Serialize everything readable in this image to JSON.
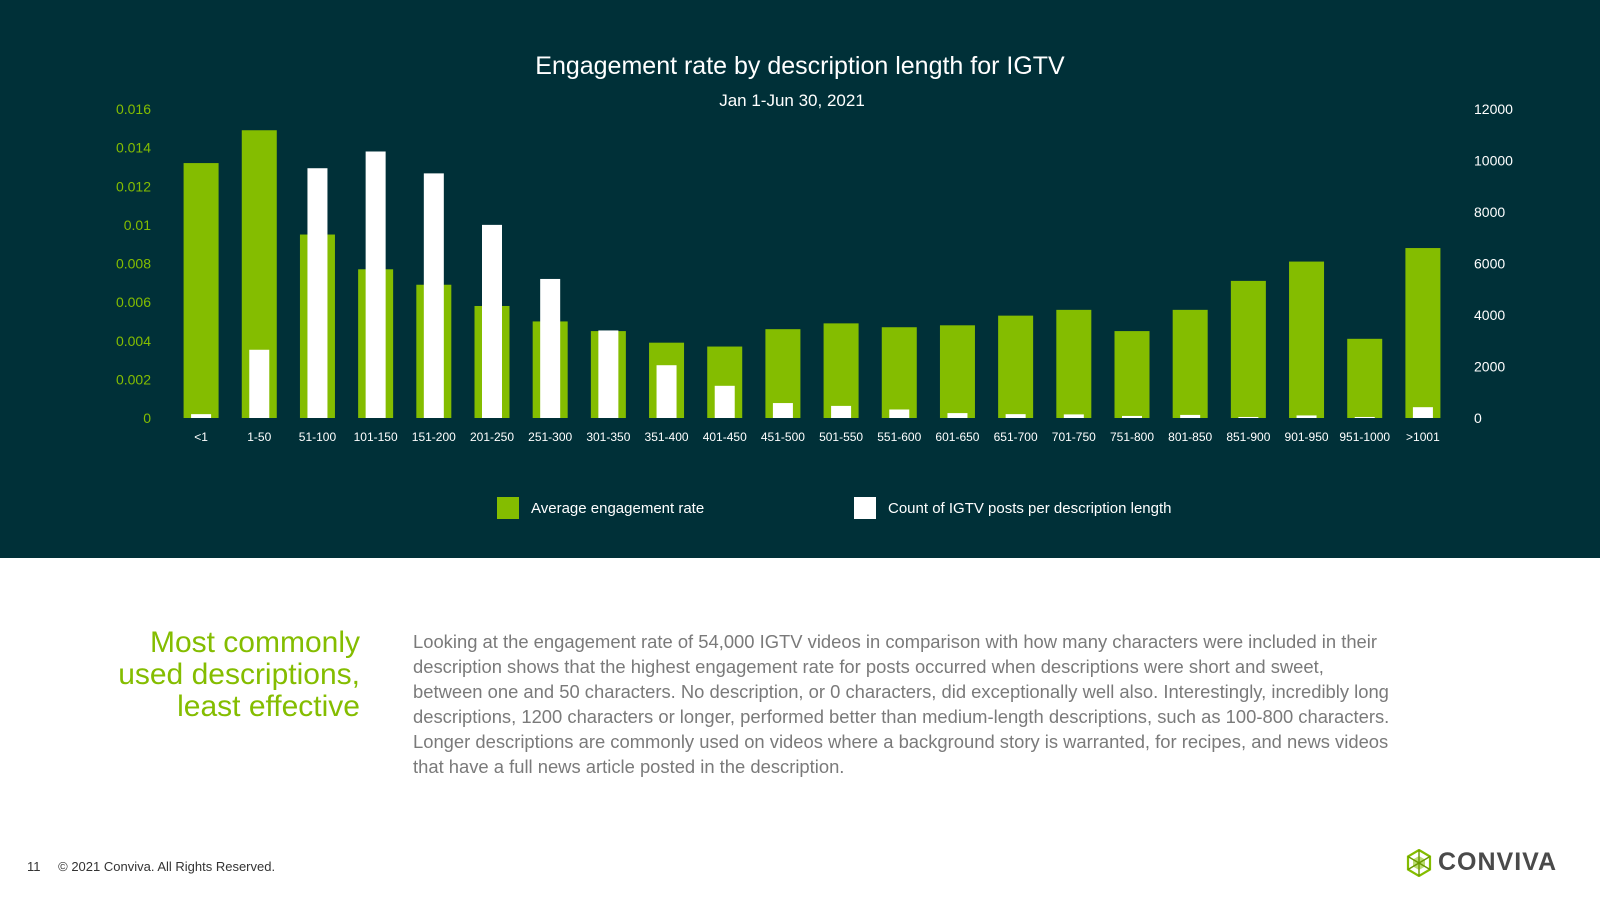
{
  "chart_data": {
    "type": "bar",
    "title": "Engagement rate by description length for IGTV",
    "subtitle": "Jan 1-Jun 30, 2021",
    "categories": [
      "<1",
      "1-50",
      "51-100",
      "101-150",
      "151-200",
      "201-250",
      "251-300",
      "301-350",
      "351-400",
      "401-450",
      "451-500",
      "501-550",
      "551-600",
      "601-650",
      "651-700",
      "701-750",
      "751-800",
      "801-850",
      "851-900",
      "901-950",
      "951-1000",
      ">1001"
    ],
    "series": [
      {
        "name": "Average engagement rate",
        "axis": "left",
        "color": "#84bd00",
        "values": [
          0.0132,
          0.0149,
          0.0095,
          0.0077,
          0.0069,
          0.0058,
          0.005,
          0.0045,
          0.0039,
          0.0037,
          0.0046,
          0.0049,
          0.0047,
          0.0048,
          0.0053,
          0.0056,
          0.0045,
          0.0056,
          0.0071,
          0.0081,
          0.0041,
          0.0088
        ]
      },
      {
        "name": "Count of IGTV posts per description length",
        "axis": "right",
        "color": "#ffffff",
        "values": [
          150,
          2650,
          9700,
          10350,
          9500,
          7500,
          5400,
          3400,
          2050,
          1250,
          580,
          470,
          330,
          190,
          150,
          140,
          80,
          120,
          40,
          100,
          40,
          420
        ]
      }
    ],
    "ylim_left": [
      0,
      0.016
    ],
    "ylim_right": [
      0,
      12000
    ],
    "yticks_left": [
      "0",
      "0.002",
      "0.004",
      "0.006",
      "0.008",
      "0.01",
      "0.012",
      "0.014",
      "0.016"
    ],
    "yticks_right": [
      "0",
      "2000",
      "4000",
      "6000",
      "8000",
      "10000",
      "12000"
    ],
    "legend_position": "bottom"
  },
  "text": {
    "heading_lines": [
      "Most commonly",
      "used descriptions,",
      "least effective"
    ],
    "body_lines": [
      "Looking at the engagement rate of 54,000 IGTV videos in comparison with how many characters were included in their",
      "description shows that the highest engagement rate for posts occurred when descriptions were short and sweet,",
      "between one and 50 characters. No description, or 0 characters, did exceptionally well also. Interestingly, incredibly long",
      "descriptions, 1200 characters or longer, performed better than medium-length descriptions, such as 100-800 characters.",
      "Longer descriptions are commonly used on videos where a background story is warranted, for recipes, and news videos",
      "that have a full news article posted in the description."
    ]
  },
  "footer": {
    "page_number": "11",
    "copyright": "© 2021 Conviva. All Rights Reserved.",
    "logo_text": "CONVIVA",
    "logo_icon": "conviva-logo-icon"
  },
  "colors": {
    "panel_bg": "#003038",
    "accent": "#84bd00",
    "body_text": "#7a7a7a"
  }
}
